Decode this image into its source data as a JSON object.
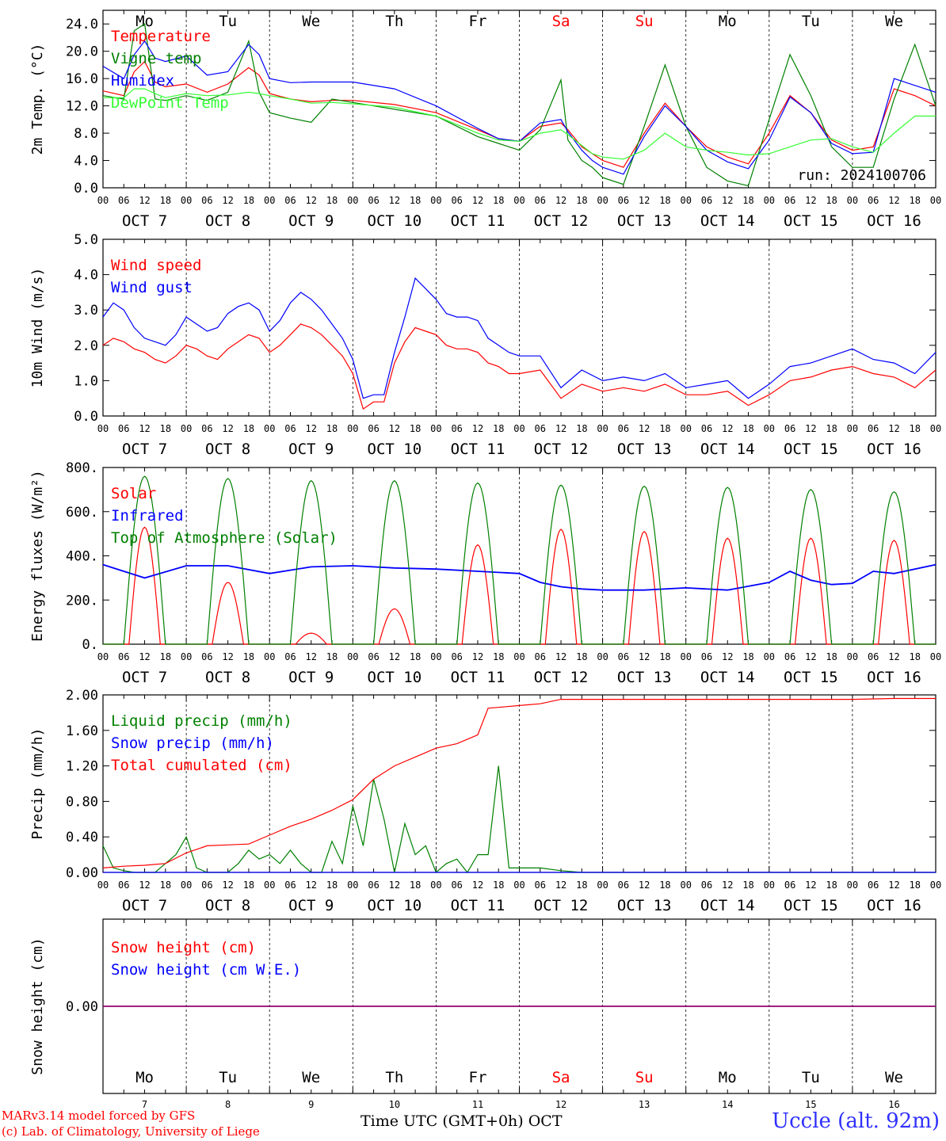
{
  "run_label": "run: 2024100706",
  "station": "Uccle (alt. 92m)",
  "credits": [
    "MARv3.14 model forced by GFS",
    "(c) Lab. of Climatology, University of Liege"
  ],
  "x_axis_title": "Time UTC (GMT+0h) OCT",
  "days": [
    {
      "dow": "Mo",
      "date": "OCT  7",
      "num": "7",
      "weekend": false
    },
    {
      "dow": "Tu",
      "date": "OCT  8",
      "num": "8",
      "weekend": false
    },
    {
      "dow": "We",
      "date": "OCT  9",
      "num": "9",
      "weekend": false
    },
    {
      "dow": "Th",
      "date": "OCT 10",
      "num": "10",
      "weekend": false
    },
    {
      "dow": "Fr",
      "date": "OCT 11",
      "num": "11",
      "weekend": false
    },
    {
      "dow": "Sa",
      "date": "OCT 12",
      "num": "12",
      "weekend": true
    },
    {
      "dow": "Su",
      "date": "OCT 13",
      "num": "13",
      "weekend": true
    },
    {
      "dow": "Mo",
      "date": "OCT 14",
      "num": "14",
      "weekend": false
    },
    {
      "dow": "Tu",
      "date": "OCT 15",
      "num": "15",
      "weekend": false
    },
    {
      "dow": "We",
      "date": "OCT 16",
      "num": "16",
      "weekend": false
    }
  ],
  "hour_ticks": [
    "00",
    "06",
    "12",
    "18"
  ],
  "colors": {
    "red": "#ff0000",
    "green": "#008000",
    "blue": "#0000ff",
    "lightgreen": "#33ff33",
    "purple": "#800080",
    "weekday": "#000000",
    "weekend": "#ff0000"
  },
  "chart_data": [
    {
      "type": "line",
      "ylabel": "2m Temp. (°C)",
      "ylim": [
        0,
        26
      ],
      "yticks": [
        0,
        4,
        8,
        12,
        16,
        20,
        24
      ],
      "ytick_labels": [
        "0.0",
        "4.0",
        "8.0",
        "12.0",
        "16.0",
        "20.0",
        "24.0"
      ],
      "show_dow": true,
      "x_unit": "hours since Oct 7 00 UTC",
      "series": [
        {
          "name": "Temperature",
          "color": "#ff0000",
          "x": [
            0,
            6,
            9,
            12,
            15,
            18,
            24,
            30,
            36,
            42,
            45,
            48,
            54,
            60,
            66,
            72,
            84,
            96,
            108,
            114,
            120,
            126,
            132,
            134,
            138,
            141,
            144,
            150,
            156,
            162,
            168,
            174,
            180,
            186,
            192,
            198,
            204,
            210,
            216,
            222,
            228,
            234,
            240
          ],
          "values": [
            14.2,
            13.5,
            17,
            18.5,
            15.5,
            14.8,
            15.2,
            14,
            15.2,
            17.6,
            16.5,
            13.8,
            13,
            12.6,
            12.8,
            12.8,
            12.2,
            11,
            8.5,
            7.2,
            6.8,
            9,
            9.5,
            8.5,
            6,
            5,
            4,
            3,
            8,
            12.4,
            9,
            6,
            4.5,
            3.5,
            8,
            13.5,
            11,
            7,
            5.5,
            6,
            14.5,
            13.5,
            12
          ]
        },
        {
          "name": "Vigne temp",
          "color": "#008000",
          "x": [
            0,
            6,
            9,
            12,
            15,
            18,
            24,
            30,
            36,
            42,
            45,
            48,
            54,
            60,
            66,
            72,
            84,
            96,
            108,
            114,
            120,
            126,
            132,
            134,
            138,
            141,
            144,
            150,
            156,
            162,
            168,
            174,
            180,
            186,
            192,
            198,
            204,
            210,
            216,
            222,
            228,
            234,
            240
          ],
          "values": [
            13.5,
            13,
            23,
            24,
            13,
            12.8,
            13.5,
            12.8,
            14,
            21.5,
            14,
            11,
            10.2,
            9.6,
            13,
            12.5,
            11.5,
            10.5,
            7.5,
            6.5,
            5.5,
            8.5,
            15.8,
            7,
            4,
            3,
            1.5,
            0.5,
            9,
            18,
            9,
            3,
            1,
            0.3,
            10,
            19.5,
            13.5,
            6,
            3,
            3,
            13,
            21,
            12
          ]
        },
        {
          "name": "Humidex",
          "color": "#0000ff",
          "x": [
            0,
            6,
            9,
            12,
            15,
            18,
            24,
            30,
            36,
            42,
            45,
            48,
            54,
            60,
            66,
            72,
            84,
            96,
            108,
            114,
            120,
            126,
            132,
            134,
            138,
            141,
            144,
            150,
            156,
            162,
            168,
            174,
            180,
            186,
            192,
            198,
            204,
            210,
            216,
            222,
            228,
            234,
            240
          ],
          "values": [
            17.8,
            16,
            19.5,
            21.5,
            19,
            18.5,
            19.3,
            16.5,
            17,
            21,
            19.5,
            16,
            15.4,
            15.5,
            15.5,
            15.5,
            14.5,
            12,
            8.7,
            7.2,
            6.8,
            9.5,
            10,
            8.2,
            5.5,
            4,
            3,
            2,
            7.5,
            12,
            9,
            5.5,
            3.8,
            2.8,
            7,
            13.3,
            11,
            6.5,
            5,
            5.2,
            16,
            15,
            14
          ]
        },
        {
          "name": "DewPoint Temp",
          "color": "#33ff33",
          "x": [
            0,
            6,
            9,
            12,
            15,
            18,
            24,
            30,
            36,
            42,
            45,
            48,
            54,
            60,
            66,
            72,
            84,
            96,
            108,
            114,
            120,
            126,
            132,
            134,
            138,
            141,
            144,
            150,
            156,
            162,
            168,
            174,
            180,
            186,
            192,
            198,
            204,
            210,
            216,
            222,
            228,
            234,
            240
          ],
          "values": [
            13.2,
            13.2,
            14.5,
            14.5,
            13.8,
            13.2,
            13.8,
            13.5,
            13.6,
            14,
            13.8,
            13.5,
            13,
            12.4,
            12.5,
            12.3,
            11.8,
            10.5,
            8,
            7,
            6.8,
            8,
            8.5,
            7.8,
            6.2,
            5,
            4.5,
            4.2,
            5.5,
            8,
            6,
            5.5,
            5.2,
            4.8,
            5,
            6,
            7,
            7.2,
            6,
            5.2,
            8,
            10.5,
            10.5
          ]
        }
      ],
      "legend": "top-left"
    },
    {
      "type": "line",
      "ylabel": "10m Wind (m/s)",
      "ylim": [
        0,
        5
      ],
      "yticks": [
        0,
        1,
        2,
        3,
        4,
        5
      ],
      "ytick_labels": [
        "0.0",
        "1.0",
        "2.0",
        "3.0",
        "4.0",
        "5.0"
      ],
      "show_dow": false,
      "series": [
        {
          "name": "Wind speed",
          "color": "#ff0000",
          "x": [
            0,
            3,
            6,
            9,
            12,
            15,
            18,
            21,
            24,
            27,
            30,
            33,
            36,
            39,
            42,
            45,
            48,
            51,
            54,
            57,
            60,
            63,
            66,
            69,
            72,
            75,
            78,
            81,
            84,
            87,
            90,
            93,
            96,
            99,
            102,
            105,
            108,
            111,
            114,
            117,
            120,
            126,
            132,
            138,
            144,
            150,
            156,
            162,
            168,
            174,
            180,
            186,
            192,
            198,
            204,
            210,
            216,
            222,
            228,
            234,
            240
          ],
          "values": [
            2.0,
            2.2,
            2.1,
            1.9,
            1.8,
            1.6,
            1.5,
            1.7,
            2.0,
            1.9,
            1.7,
            1.6,
            1.9,
            2.1,
            2.3,
            2.2,
            1.8,
            2.0,
            2.3,
            2.6,
            2.5,
            2.3,
            2.0,
            1.7,
            1.2,
            0.2,
            0.4,
            0.4,
            1.5,
            2.1,
            2.5,
            2.4,
            2.3,
            2.0,
            1.9,
            1.9,
            1.8,
            1.5,
            1.4,
            1.2,
            1.2,
            1.3,
            0.5,
            0.9,
            0.7,
            0.8,
            0.7,
            0.9,
            0.6,
            0.6,
            0.7,
            0.3,
            0.6,
            1.0,
            1.1,
            1.3,
            1.4,
            1.2,
            1.1,
            0.8,
            1.3
          ]
        },
        {
          "name": "Wind gust",
          "color": "#0000ff",
          "x": [
            0,
            3,
            6,
            9,
            12,
            15,
            18,
            21,
            24,
            27,
            30,
            33,
            36,
            39,
            42,
            45,
            48,
            51,
            54,
            57,
            60,
            63,
            66,
            69,
            72,
            75,
            78,
            81,
            84,
            87,
            90,
            93,
            96,
            99,
            102,
            105,
            108,
            111,
            114,
            117,
            120,
            126,
            132,
            138,
            144,
            150,
            156,
            162,
            168,
            174,
            180,
            186,
            192,
            198,
            204,
            210,
            216,
            222,
            228,
            234,
            240
          ],
          "values": [
            2.8,
            3.2,
            3.0,
            2.5,
            2.2,
            2.1,
            2.0,
            2.3,
            2.8,
            2.6,
            2.4,
            2.5,
            2.9,
            3.1,
            3.2,
            3.0,
            2.4,
            2.7,
            3.2,
            3.5,
            3.3,
            3.0,
            2.6,
            2.2,
            1.6,
            0.5,
            0.6,
            0.6,
            1.8,
            2.8,
            3.9,
            3.6,
            3.3,
            2.9,
            2.8,
            2.8,
            2.7,
            2.2,
            2.0,
            1.8,
            1.7,
            1.7,
            0.8,
            1.3,
            1.0,
            1.1,
            1.0,
            1.2,
            0.8,
            0.9,
            1.0,
            0.5,
            0.9,
            1.4,
            1.5,
            1.7,
            1.9,
            1.6,
            1.5,
            1.2,
            1.8
          ]
        }
      ],
      "legend": "top-left"
    },
    {
      "type": "line",
      "ylabel": "Energy fluxes (W/m²)",
      "ylim": [
        0,
        800
      ],
      "yticks": [
        0,
        200,
        400,
        600,
        800
      ],
      "ytick_labels": [
        "0.",
        "200.",
        "400.",
        "600.",
        "800."
      ],
      "show_dow": false,
      "series": [
        {
          "name": "Solar",
          "color": "#ff0000",
          "peaks": [
            530,
            280,
            50,
            160,
            450,
            520,
            510,
            480,
            480,
            470
          ]
        },
        {
          "name": "Infrared",
          "color": "#0000ff",
          "x": [
            0,
            12,
            24,
            36,
            48,
            60,
            72,
            84,
            96,
            108,
            120,
            126,
            132,
            138,
            144,
            156,
            168,
            180,
            192,
            198,
            204,
            210,
            216,
            222,
            228,
            240
          ],
          "values": [
            360,
            300,
            355,
            355,
            320,
            350,
            355,
            345,
            340,
            330,
            320,
            280,
            260,
            250,
            245,
            245,
            255,
            245,
            280,
            330,
            290,
            270,
            275,
            330,
            320,
            360
          ]
        },
        {
          "name": "Top of Atmosphere (Solar)",
          "color": "#008000",
          "peaks": [
            760,
            750,
            740,
            740,
            730,
            720,
            715,
            710,
            700,
            690
          ]
        }
      ],
      "legend": "top-left"
    },
    {
      "type": "line",
      "ylabel": "Precip (mm/h)",
      "ylim": [
        0,
        2.0
      ],
      "yticks": [
        0,
        0.4,
        0.8,
        1.2,
        1.6,
        2.0
      ],
      "ytick_labels": [
        "0.00",
        "0.40",
        "0.80",
        "1.20",
        "1.60",
        "2.00"
      ],
      "show_dow": false,
      "series": [
        {
          "name": "Liquid precip (mm/h)",
          "color": "#008000",
          "x": [
            0,
            3,
            6,
            9,
            12,
            15,
            18,
            21,
            24,
            27,
            30,
            33,
            36,
            39,
            42,
            45,
            48,
            51,
            54,
            57,
            60,
            63,
            66,
            69,
            72,
            75,
            78,
            81,
            84,
            87,
            90,
            93,
            96,
            99,
            102,
            105,
            108,
            111,
            114,
            117,
            120,
            126,
            132,
            138,
            144,
            240
          ],
          "values": [
            0.3,
            0.05,
            0.02,
            0.0,
            0.0,
            0.0,
            0.1,
            0.2,
            0.4,
            0.05,
            0.0,
            0.0,
            0.0,
            0.1,
            0.25,
            0.15,
            0.2,
            0.1,
            0.25,
            0.1,
            0.0,
            0.0,
            0.35,
            0.1,
            0.75,
            0.3,
            1.05,
            0.6,
            0.0,
            0.55,
            0.2,
            0.3,
            0.0,
            0.1,
            0.15,
            0.0,
            0.2,
            0.2,
            1.2,
            0.05,
            0.05,
            0.05,
            0.02,
            0.0,
            0.0,
            0.0
          ]
        },
        {
          "name": "Snow precip (mm/h)",
          "color": "#0000ff",
          "x": [
            0,
            240
          ],
          "values": [
            0,
            0
          ]
        },
        {
          "name": "Total cumulated (cm)",
          "color": "#ff0000",
          "x": [
            0,
            6,
            12,
            18,
            24,
            30,
            36,
            42,
            48,
            54,
            60,
            66,
            72,
            78,
            84,
            90,
            96,
            102,
            108,
            111,
            114,
            120,
            126,
            132,
            138,
            144,
            156,
            168,
            180,
            192,
            204,
            216,
            228,
            240
          ],
          "values": [
            0.05,
            0.07,
            0.08,
            0.1,
            0.22,
            0.3,
            0.31,
            0.32,
            0.42,
            0.52,
            0.6,
            0.7,
            0.82,
            1.05,
            1.2,
            1.3,
            1.4,
            1.45,
            1.55,
            1.85,
            1.86,
            1.88,
            1.9,
            1.95,
            1.95,
            1.95,
            1.95,
            1.95,
            1.95,
            1.95,
            1.95,
            1.95,
            1.96,
            1.96
          ]
        }
      ],
      "legend": "top-left"
    },
    {
      "type": "line",
      "ylabel": "Snow height (cm)",
      "ylim": [
        -1,
        1
      ],
      "yticks": [
        0
      ],
      "ytick_labels": [
        "0.00"
      ],
      "show_dow": true,
      "series": [
        {
          "name": "Snow height (cm)",
          "color": "#ff0000",
          "x": [
            0,
            240
          ],
          "values": [
            0,
            0
          ]
        },
        {
          "name": "Snow height (cm W.E.)",
          "color": "#0000ff",
          "x": [
            0,
            240
          ],
          "values": [
            0,
            0
          ]
        }
      ],
      "legend": "top-left"
    }
  ]
}
